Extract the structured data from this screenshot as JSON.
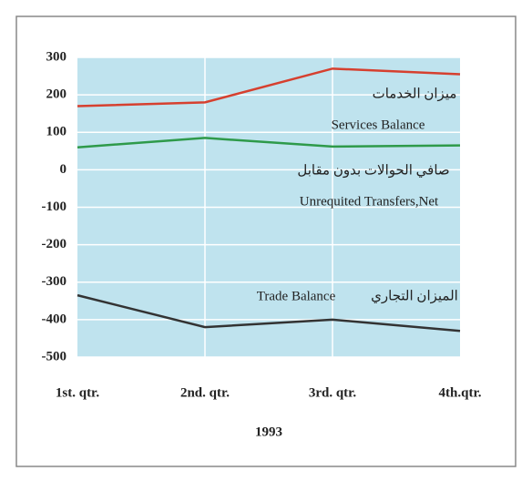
{
  "chart_data": {
    "type": "line",
    "categories": [
      "1st. qtr.",
      "2nd. qtr.",
      "3rd. qtr.",
      "4th.qtr."
    ],
    "series": [
      {
        "color": "#d6402f",
        "values": [
          170,
          180,
          270,
          255
        ]
      },
      {
        "color": "#2e9a4a",
        "values": [
          60,
          85,
          62,
          65
        ]
      },
      {
        "color": "#333333",
        "values": [
          -335,
          -420,
          -400,
          -430
        ]
      }
    ],
    "ylim": [
      -500,
      300
    ],
    "yticks": [
      300,
      200,
      100,
      0,
      -100,
      -200,
      -300,
      -400,
      -500
    ],
    "grid": true,
    "xlabel": "1993",
    "annotations": [
      "ميزان الخدمات",
      "Services Balance",
      "صافي الحوالات بدون مقابل",
      "Unrequited Transfers,Net",
      "Trade Balance",
      "الميزان التجاري"
    ]
  }
}
